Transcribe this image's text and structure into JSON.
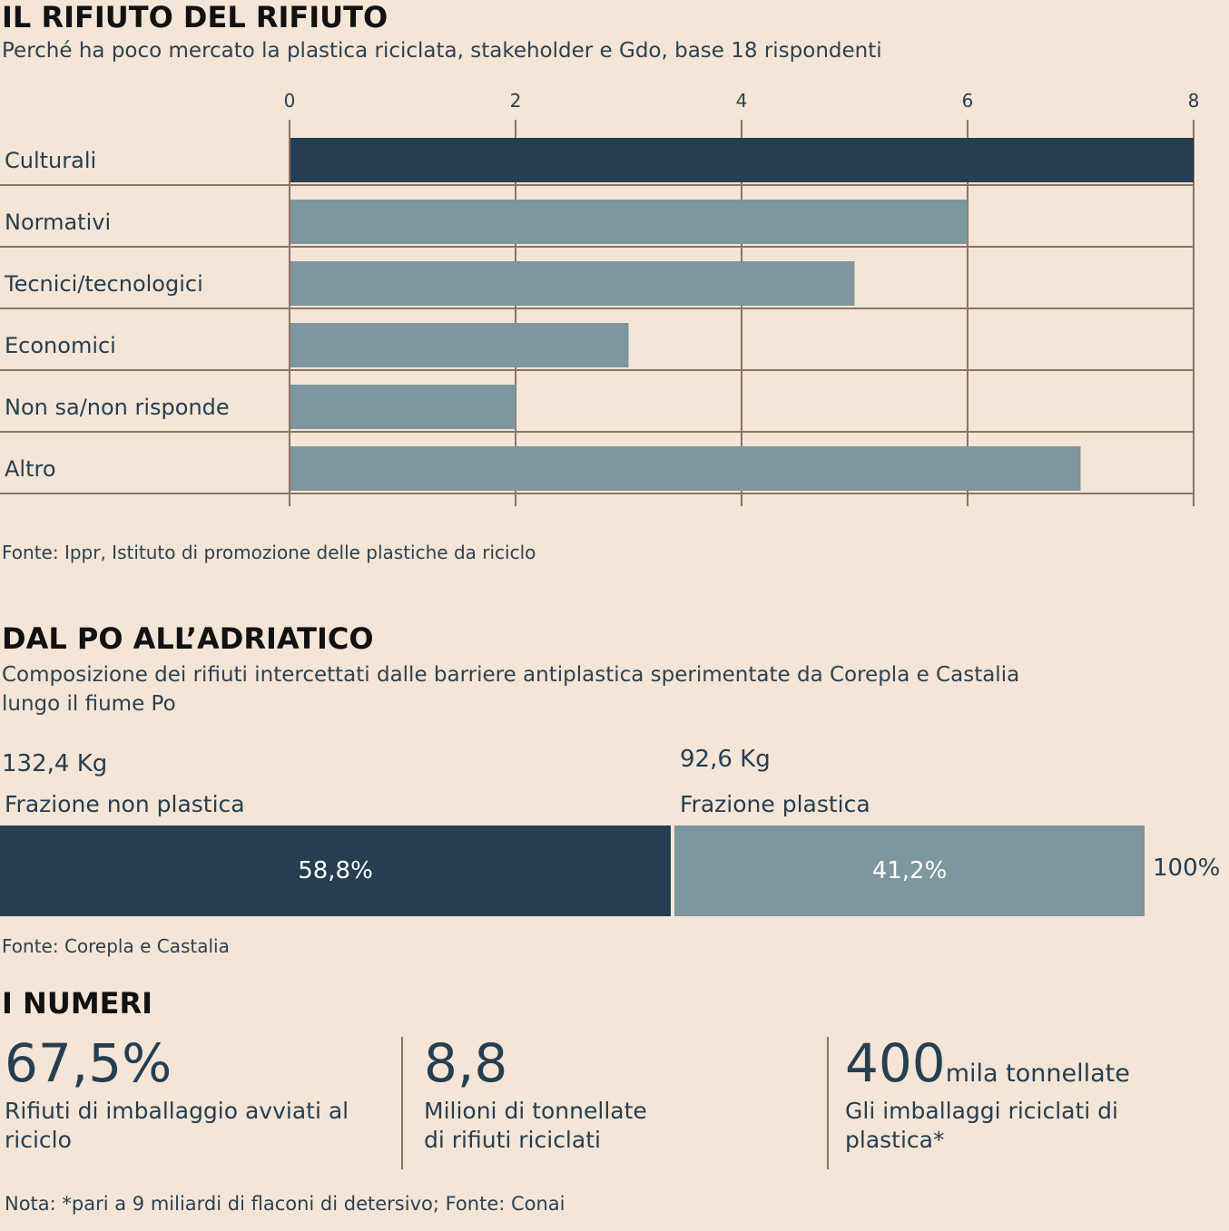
{
  "chart1": {
    "title": "IL RIFIUTO DEL RIFIUTO",
    "subtitle": "Perché ha poco mercato la plastica riciclata, stakeholder e Gdo, base 18 rispondenti",
    "source": "Fonte: Ippr, Istituto di promozione delle plastiche da riciclo"
  },
  "chart_data": [
    {
      "type": "bar",
      "orientation": "horizontal",
      "categories": [
        "Culturali",
        "Normativi",
        "Tecnici/tecnologici",
        "Economici",
        "Non sa/non risponde",
        "Altro"
      ],
      "values": [
        8,
        6,
        5,
        3,
        2,
        7
      ],
      "xlim": [
        0,
        8
      ],
      "ticks": [
        "0",
        "2",
        "4",
        "6",
        "8"
      ],
      "axis_position": "top",
      "grid": true,
      "colors": [
        "#253e50",
        "#7e969d",
        "#7e969d",
        "#7e969d",
        "#7e969d",
        "#7e969d"
      ]
    },
    {
      "type": "bar",
      "orientation": "stacked-horizontal",
      "categories": [
        "Frazione non plastica",
        "Frazione plastica"
      ],
      "values": [
        58.8,
        41.2
      ],
      "value_labels": [
        "58,8%",
        "41,2%"
      ],
      "weights": [
        "132,4 Kg",
        "92,6 Kg"
      ],
      "total_label": "100%",
      "colors": [
        "#253e50",
        "#7e969d"
      ]
    }
  ],
  "chart2": {
    "title": "DAL PO ALL’ADRIATICO",
    "subtitle_line1": "Composizione dei rifiuti intercettati dalle barriere antiplastica sperimentate da Corepla e Castalia",
    "subtitle_line2": "lungo il fiume Po",
    "source": "Fonte: Corepla e Castalia"
  },
  "numbers": {
    "title": "I NUMERI",
    "items": [
      {
        "value": "67,5%",
        "unit": "",
        "desc_line1": "Rifiuti di imballaggio avviati al",
        "desc_line2": "riciclo"
      },
      {
        "value": "8,8",
        "unit": "",
        "desc_line1": "Milioni di tonnellate",
        "desc_line2": "di rifiuti riciclati"
      },
      {
        "value": "400",
        "unit": "mila tonnellate",
        "desc_line1": "Gli imballaggi riciclati di",
        "desc_line2": "plastica*"
      }
    ],
    "note": "Nota: *pari a 9 miliardi di flaconi di detersivo; Fonte: Conai"
  }
}
